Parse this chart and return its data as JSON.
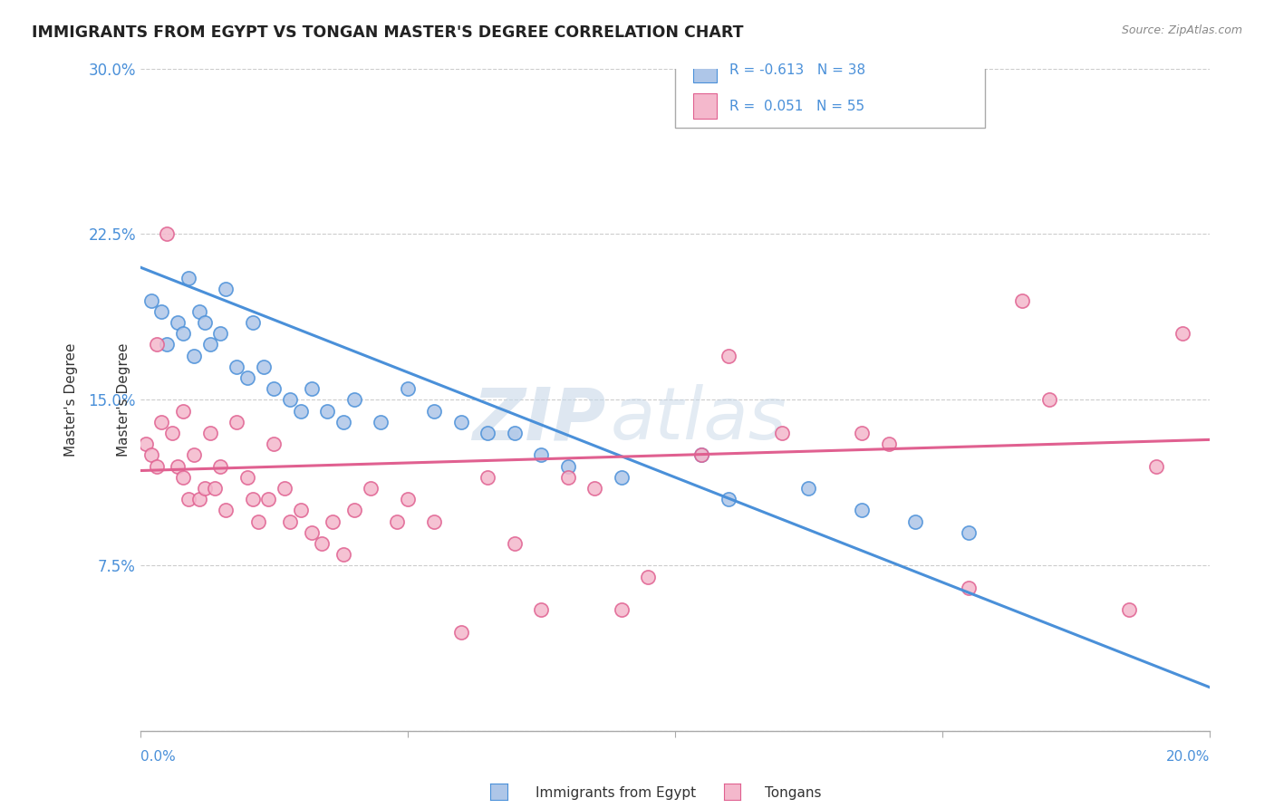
{
  "title": "IMMIGRANTS FROM EGYPT VS TONGAN MASTER'S DEGREE CORRELATION CHART",
  "source_text": "Source: ZipAtlas.com",
  "legend_R1": "-0.613",
  "legend_N1": "38",
  "legend_R2": "0.051",
  "legend_N2": "55",
  "legend_label1": "Immigrants from Egypt",
  "legend_label2": "Tongans",
  "color_blue_fill": "#aec6e8",
  "color_blue_edge": "#4a90d9",
  "color_pink_fill": "#f4b8cc",
  "color_pink_edge": "#e06090",
  "color_blue_line": "#4a90d9",
  "color_pink_line": "#e06090",
  "color_raxis": "#4a90d9",
  "watermark_zip": "ZIP",
  "watermark_atlas": "atlas",
  "blue_scatter_x": [
    0.2,
    0.4,
    0.5,
    0.7,
    0.8,
    0.9,
    1.0,
    1.1,
    1.2,
    1.3,
    1.5,
    1.6,
    1.8,
    2.0,
    2.1,
    2.3,
    2.5,
    2.8,
    3.0,
    3.2,
    3.5,
    3.8,
    4.0,
    4.5,
    5.0,
    5.5,
    6.0,
    6.5,
    7.0,
    7.5,
    8.0,
    9.0,
    10.5,
    11.0,
    12.5,
    13.5,
    14.5,
    15.5
  ],
  "blue_scatter_y": [
    19.5,
    19.0,
    17.5,
    18.5,
    18.0,
    20.5,
    17.0,
    19.0,
    18.5,
    17.5,
    18.0,
    20.0,
    16.5,
    16.0,
    18.5,
    16.5,
    15.5,
    15.0,
    14.5,
    15.5,
    14.5,
    14.0,
    15.0,
    14.0,
    15.5,
    14.5,
    14.0,
    13.5,
    13.5,
    12.5,
    12.0,
    11.5,
    12.5,
    10.5,
    11.0,
    10.0,
    9.5,
    9.0
  ],
  "pink_scatter_x": [
    0.1,
    0.2,
    0.3,
    0.4,
    0.5,
    0.6,
    0.7,
    0.8,
    0.9,
    1.0,
    1.1,
    1.2,
    1.3,
    1.4,
    1.5,
    1.6,
    1.8,
    2.0,
    2.1,
    2.2,
    2.4,
    2.5,
    2.7,
    2.8,
    3.0,
    3.2,
    3.4,
    3.6,
    3.8,
    4.0,
    4.3,
    4.8,
    5.0,
    5.5,
    6.0,
    6.5,
    7.0,
    7.5,
    8.0,
    8.5,
    9.0,
    9.5,
    10.5,
    11.0,
    12.0,
    13.5,
    14.0,
    15.5,
    16.5,
    17.0,
    18.5,
    19.0,
    19.5,
    0.3,
    0.8
  ],
  "pink_scatter_y": [
    13.0,
    12.5,
    12.0,
    14.0,
    22.5,
    13.5,
    12.0,
    11.5,
    10.5,
    12.5,
    10.5,
    11.0,
    13.5,
    11.0,
    12.0,
    10.0,
    14.0,
    11.5,
    10.5,
    9.5,
    10.5,
    13.0,
    11.0,
    9.5,
    10.0,
    9.0,
    8.5,
    9.5,
    8.0,
    10.0,
    11.0,
    9.5,
    10.5,
    9.5,
    4.5,
    11.5,
    8.5,
    5.5,
    11.5,
    11.0,
    5.5,
    7.0,
    12.5,
    17.0,
    13.5,
    13.5,
    13.0,
    6.5,
    19.5,
    15.0,
    5.5,
    12.0,
    18.0,
    17.5,
    14.5
  ],
  "blue_trend_x": [
    0.0,
    20.0
  ],
  "blue_trend_y": [
    21.0,
    2.0
  ],
  "pink_trend_x": [
    0.0,
    20.0
  ],
  "pink_trend_y": [
    11.8,
    13.2
  ],
  "xlim": [
    0.0,
    20.0
  ],
  "ylim": [
    0.0,
    30.0
  ],
  "yticks": [
    0.0,
    7.5,
    15.0,
    22.5,
    30.0
  ],
  "ytick_labels": [
    "",
    "7.5%",
    "15.0%",
    "22.5%",
    "30.0%"
  ],
  "background_color": "#ffffff",
  "grid_color": "#cccccc"
}
